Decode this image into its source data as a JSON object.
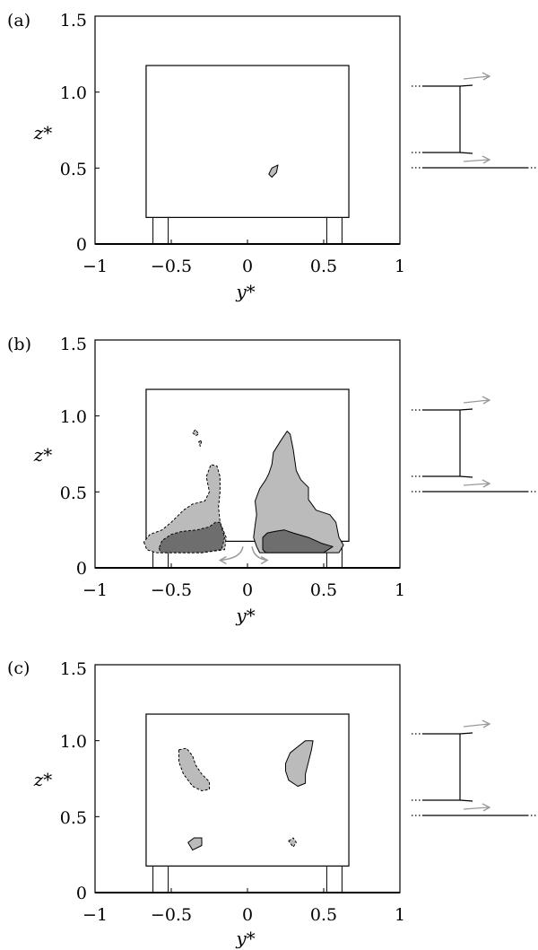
{
  "chart_data": [
    {
      "type": "contour",
      "panel_label": "(a)",
      "xlabel": "y*",
      "ylabel": "z*",
      "xlim": [
        -1,
        1
      ],
      "ylim": [
        0,
        1.5
      ],
      "xticks": [
        "−1",
        "−0.5",
        "0",
        "0.5",
        "1"
      ],
      "yticks": [
        "0",
        "0.5",
        "1.0",
        "1.5"
      ],
      "body": {
        "y": [
          -0.665,
          0.665
        ],
        "z": [
          0.175,
          1.175
        ]
      },
      "legs": [
        [
          -0.62,
          -0.52
        ],
        [
          0.52,
          0.62
        ]
      ],
      "regions": [
        {
          "level": "light",
          "style": "solid",
          "points": [
            [
              0.14,
              0.46
            ],
            [
              0.16,
              0.5
            ],
            [
              0.2,
              0.52
            ],
            [
              0.19,
              0.47
            ],
            [
              0.16,
              0.44
            ]
          ]
        }
      ],
      "arrows": []
    },
    {
      "type": "contour",
      "panel_label": "(b)",
      "xlabel": "y*",
      "ylabel": "z*",
      "xlim": [
        -1,
        1
      ],
      "ylim": [
        0,
        1.5
      ],
      "xticks": [
        "−1",
        "−0.5",
        "0",
        "0.5",
        "1"
      ],
      "yticks": [
        "0",
        "0.5",
        "1.0",
        "1.5"
      ],
      "body": {
        "y": [
          -0.665,
          0.665
        ],
        "z": [
          0.175,
          1.175
        ]
      },
      "legs": [
        [
          -0.62,
          -0.52
        ],
        [
          0.52,
          0.62
        ]
      ],
      "regions": [
        {
          "level": "light",
          "style": "dashed",
          "points": [
            [
              -0.68,
              0.17
            ],
            [
              -0.66,
              0.12
            ],
            [
              -0.6,
              0.1
            ],
            [
              -0.3,
              0.1
            ],
            [
              -0.15,
              0.12
            ],
            [
              -0.14,
              0.2
            ],
            [
              -0.18,
              0.3
            ],
            [
              -0.19,
              0.4
            ],
            [
              -0.18,
              0.5
            ],
            [
              -0.18,
              0.6
            ],
            [
              -0.2,
              0.67
            ],
            [
              -0.24,
              0.68
            ],
            [
              -0.27,
              0.6
            ],
            [
              -0.25,
              0.5
            ],
            [
              -0.28,
              0.44
            ],
            [
              -0.36,
              0.42
            ],
            [
              -0.42,
              0.38
            ],
            [
              -0.5,
              0.3
            ],
            [
              -0.56,
              0.25
            ],
            [
              -0.64,
              0.22
            ]
          ]
        },
        {
          "level": "dark",
          "style": "dashed",
          "points": [
            [
              -0.58,
              0.13
            ],
            [
              -0.57,
              0.1
            ],
            [
              -0.3,
              0.1
            ],
            [
              -0.17,
              0.12
            ],
            [
              -0.15,
              0.2
            ],
            [
              -0.18,
              0.3
            ],
            [
              -0.21,
              0.3
            ],
            [
              -0.25,
              0.27
            ],
            [
              -0.33,
              0.25
            ],
            [
              -0.43,
              0.24
            ],
            [
              -0.5,
              0.22
            ],
            [
              -0.56,
              0.18
            ]
          ]
        },
        {
          "level": "light",
          "style": "dashed",
          "points": [
            [
              -0.36,
              0.89
            ],
            [
              -0.34,
              0.87
            ],
            [
              -0.32,
              0.88
            ],
            [
              -0.34,
              0.91
            ]
          ]
        },
        {
          "level": "light",
          "style": "dashed",
          "points": [
            [
              -0.32,
              0.83
            ],
            [
              -0.3,
              0.84
            ],
            [
              -0.31,
              0.8
            ]
          ]
        },
        {
          "level": "light",
          "style": "solid",
          "points": [
            [
              0.08,
              0.1
            ],
            [
              0.6,
              0.1
            ],
            [
              0.63,
              0.15
            ],
            [
              0.6,
              0.2
            ],
            [
              0.58,
              0.3
            ],
            [
              0.54,
              0.35
            ],
            [
              0.45,
              0.38
            ],
            [
              0.4,
              0.45
            ],
            [
              0.4,
              0.53
            ],
            [
              0.35,
              0.58
            ],
            [
              0.32,
              0.64
            ],
            [
              0.3,
              0.78
            ],
            [
              0.28,
              0.88
            ],
            [
              0.26,
              0.9
            ],
            [
              0.22,
              0.84
            ],
            [
              0.17,
              0.76
            ],
            [
              0.16,
              0.68
            ],
            [
              0.14,
              0.62
            ],
            [
              0.12,
              0.58
            ],
            [
              0.08,
              0.52
            ],
            [
              0.05,
              0.44
            ],
            [
              0.06,
              0.35
            ],
            [
              0.05,
              0.28
            ],
            [
              0.04,
              0.2
            ],
            [
              0.06,
              0.14
            ]
          ]
        },
        {
          "level": "dark",
          "style": "solid",
          "points": [
            [
              0.1,
              0.12
            ],
            [
              0.12,
              0.1
            ],
            [
              0.5,
              0.1
            ],
            [
              0.56,
              0.14
            ],
            [
              0.49,
              0.16
            ],
            [
              0.4,
              0.2
            ],
            [
              0.3,
              0.23
            ],
            [
              0.24,
              0.25
            ],
            [
              0.18,
              0.24
            ],
            [
              0.13,
              0.23
            ],
            [
              0.1,
              0.2
            ]
          ]
        }
      ],
      "arrows": [
        {
          "from": [
            -0.03,
            0.14
          ],
          "to": [
            -0.18,
            0.05
          ]
        },
        {
          "from": [
            0.03,
            0.14
          ],
          "to": [
            0.13,
            0.05
          ]
        }
      ]
    },
    {
      "type": "contour",
      "panel_label": "(c)",
      "xlabel": "y*",
      "ylabel": "z*",
      "xlim": [
        -1,
        1
      ],
      "ylim": [
        0,
        1.5
      ],
      "xticks": [
        "−1",
        "−0.5",
        "0",
        "0.5",
        "1"
      ],
      "yticks": [
        "0",
        "0.5",
        "1.0",
        "1.5"
      ],
      "body": {
        "y": [
          -0.665,
          0.665
        ],
        "z": [
          0.175,
          1.175
        ]
      },
      "legs": [
        [
          -0.62,
          -0.52
        ],
        [
          0.52,
          0.62
        ]
      ],
      "regions": [
        {
          "level": "light",
          "style": "dashed",
          "points": [
            [
              -0.45,
              0.94
            ],
            [
              -0.4,
              0.95
            ],
            [
              -0.36,
              0.9
            ],
            [
              -0.34,
              0.84
            ],
            [
              -0.3,
              0.78
            ],
            [
              -0.25,
              0.73
            ],
            [
              -0.25,
              0.68
            ],
            [
              -0.3,
              0.67
            ],
            [
              -0.36,
              0.7
            ],
            [
              -0.42,
              0.78
            ],
            [
              -0.45,
              0.86
            ]
          ]
        },
        {
          "level": "light",
          "style": "solid",
          "points": [
            [
              0.38,
              1.0
            ],
            [
              0.43,
              1.0
            ],
            [
              0.42,
              0.94
            ],
            [
              0.4,
              0.86
            ],
            [
              0.38,
              0.78
            ],
            [
              0.38,
              0.72
            ],
            [
              0.33,
              0.7
            ],
            [
              0.27,
              0.74
            ],
            [
              0.25,
              0.8
            ],
            [
              0.25,
              0.85
            ],
            [
              0.28,
              0.92
            ],
            [
              0.33,
              0.96
            ]
          ]
        },
        {
          "level": "light",
          "style": "solid",
          "points": [
            [
              -0.39,
              0.33
            ],
            [
              -0.35,
              0.36
            ],
            [
              -0.3,
              0.36
            ],
            [
              -0.3,
              0.31
            ],
            [
              -0.36,
              0.28
            ]
          ]
        },
        {
          "level": "light",
          "style": "dashed",
          "points": [
            [
              0.27,
              0.34
            ],
            [
              0.3,
              0.36
            ],
            [
              0.32,
              0.33
            ],
            [
              0.3,
              0.3
            ]
          ]
        }
      ],
      "arrows": []
    }
  ],
  "colors": {
    "light_fill": "#bbbbbb",
    "dark_fill": "#6e6e6e",
    "arrow": "#999999"
  }
}
